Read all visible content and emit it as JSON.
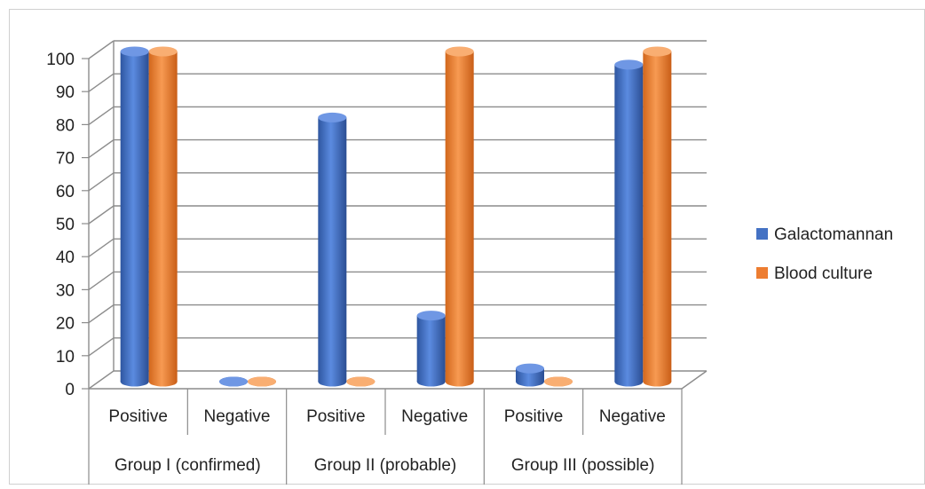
{
  "chart_data": {
    "type": "bar",
    "style": "3d-cylinder",
    "title": "",
    "xlabel": "",
    "ylabel": "",
    "ylim": [
      0,
      100
    ],
    "yticks": [
      0,
      10,
      20,
      30,
      40,
      50,
      60,
      70,
      80,
      90,
      100
    ],
    "grid": true,
    "legend_position": "right",
    "categories": [
      "Positive",
      "Negative",
      "Positive",
      "Negative",
      "Positive",
      "Negative"
    ],
    "groups": [
      {
        "label": "Group I (confirmed)",
        "span": [
          0,
          1
        ]
      },
      {
        "label": "Group II (probable)",
        "span": [
          2,
          3
        ]
      },
      {
        "label": "Group III (possible)",
        "span": [
          4,
          5
        ]
      }
    ],
    "series": [
      {
        "name": "Galactomannan",
        "color": "#4472C4",
        "values": [
          100,
          0,
          80,
          20,
          4,
          96
        ]
      },
      {
        "name": "Blood culture",
        "color": "#ED7D31",
        "values": [
          100,
          0,
          0,
          100,
          0,
          100
        ]
      }
    ]
  }
}
